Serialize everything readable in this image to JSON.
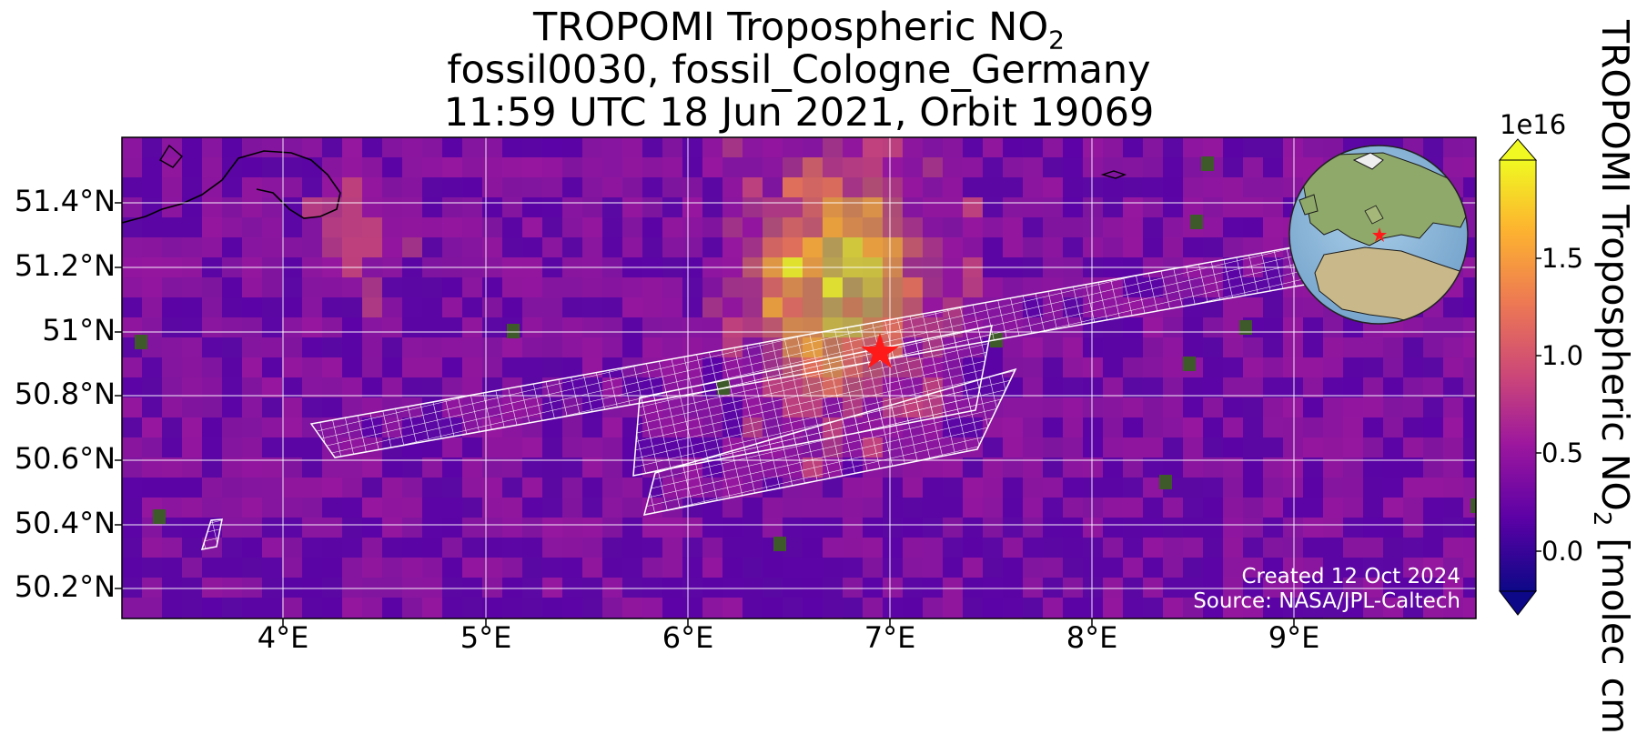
{
  "title": {
    "line1": "TROPOMI Tropospheric NO",
    "line1_sub": "2",
    "line2": "fossil0030, fossil_Cologne_Germany",
    "line3": "11:59 UTC 18 Jun 2021, Orbit 19069"
  },
  "axes": {
    "lat_labels": [
      "51.4°N",
      "51.2°N",
      "51°N",
      "50.8°N",
      "50.6°N",
      "50.4°N",
      "50.2°N"
    ],
    "lon_labels": [
      "4°E",
      "5°E",
      "6°E",
      "7°E",
      "8°E",
      "9°E"
    ]
  },
  "colorbar": {
    "exponent": "1e16",
    "ticks": [
      "1.5",
      "1.0",
      "0.5",
      "0.0"
    ],
    "label": "TROPOMI Tropospheric NO",
    "label_sub": "2",
    "label_tail": " [molec cm",
    "colormap": "plasma",
    "colors": [
      "#0d0887",
      "#5c01a6",
      "#9c179e",
      "#cc4778",
      "#ed7953",
      "#fdb42f",
      "#f0f921"
    ]
  },
  "credits": {
    "created": "Created 12 Oct 2024",
    "source": "Source: NASA/JPL-Caltech"
  },
  "site": {
    "marker": "red-star",
    "color": "#ff1a1a"
  },
  "inset": {
    "type": "globe",
    "marker": "red-star"
  }
}
